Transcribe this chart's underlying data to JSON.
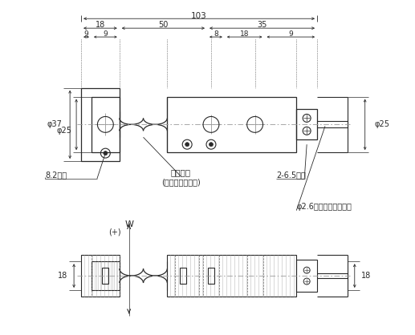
{
  "bg_color": "#ffffff",
  "lc": "#2a2a2a",
  "dc": "#2a2a2a",
  "clc": "#999999",
  "annotations": {
    "dim_103": "103",
    "dim_18a": "18",
    "dim_50": "50",
    "dim_35": "35",
    "dim_9a": "9",
    "dim_9b": "9",
    "dim_8": "8",
    "dim_18b": "18",
    "dim_9c": "9",
    "phi37": "φ37",
    "phi25a": "φ25",
    "phi25b": "φ25",
    "bellows": "ベローズ",
    "neoprene": "(ネオプレンゴム)",
    "kiri82": "8.2キリ",
    "kiri265": "2-6.5キリ",
    "cable": "φ2.6テフロンケーブル",
    "W": "W",
    "plus": "(+)",
    "dim_18c": "18",
    "dim_18d": "18"
  }
}
